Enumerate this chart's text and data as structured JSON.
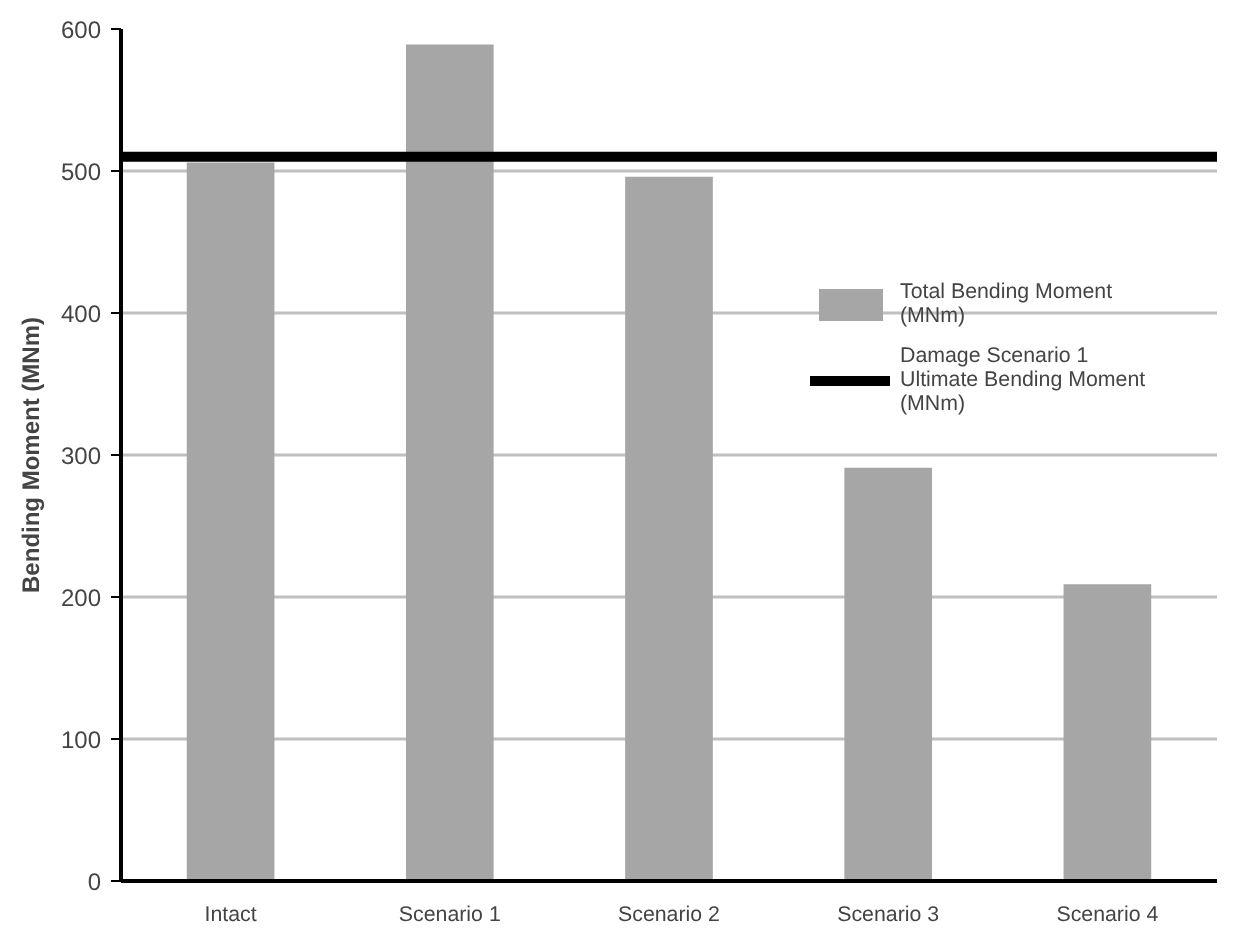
{
  "chart_data": {
    "type": "bar",
    "ylabel": "Bending Moment (MNm)",
    "categories": [
      "Intact",
      "Scenario 1",
      "Scenario 2",
      "Scenario 3",
      "Scenario 4"
    ],
    "series": [
      {
        "name": "Total Bending Moment (MNm)",
        "color": "#a6a6a6",
        "values": [
          506,
          589,
          496,
          291,
          209
        ]
      }
    ],
    "ref_lines": [
      {
        "axis": "y",
        "value": 510,
        "label": "Damage Scenario 1 Ultimate Bending Moment (MNm)",
        "color": "#000000"
      }
    ],
    "ylim": [
      0,
      600
    ],
    "yticks": [
      0,
      100,
      200,
      300,
      400,
      500,
      600
    ],
    "grid": "y",
    "legend": "right"
  }
}
